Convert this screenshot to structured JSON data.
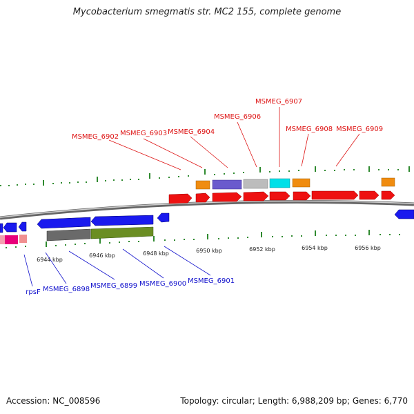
{
  "title": "Mycobacterium smegmatis str. MC2 155, complete genome",
  "accession": "Accession: NC_008596",
  "topology": "Topology: circular; Length: 6,988,209 bp; Genes: 6,770",
  "colors": {
    "forward_gene": "#ee1111",
    "reverse_gene": "#1111dd",
    "label_top": "#dd1111",
    "label_bottom": "#1111cc",
    "backbone": "#888888",
    "tick": "#339933"
  },
  "ticks": [
    {
      "label": "6944 kbp"
    },
    {
      "label": "6946 kbp"
    },
    {
      "label": "6948 kbp"
    },
    {
      "label": "6950 kbp"
    },
    {
      "label": "6952 kbp"
    },
    {
      "label": "6954 kbp"
    },
    {
      "label": "6956 kbp"
    }
  ],
  "top_labels": [
    {
      "text": "MSMEG_6902"
    },
    {
      "text": "MSMEG_6903"
    },
    {
      "text": "MSMEG_6904"
    },
    {
      "text": "MSMEG_6906"
    },
    {
      "text": "MSMEG_6907"
    },
    {
      "text": "MSMEG_6908"
    },
    {
      "text": "MSMEG_6909"
    }
  ],
  "bottom_labels": [
    {
      "text": "rpsF"
    },
    {
      "text": "MSMEG_6898"
    },
    {
      "text": "MSMEG_6899"
    },
    {
      "text": "MSMEG_6900"
    },
    {
      "text": "MSMEG_6901"
    }
  ]
}
